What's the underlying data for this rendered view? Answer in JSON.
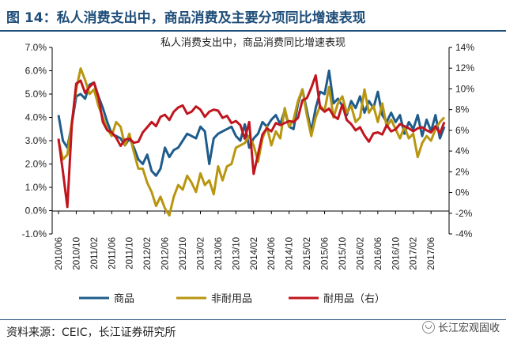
{
  "figure": {
    "title": "图 14：私人消费支出中，商品消费及主要分项同比增速表现",
    "source": "资料来源：CEIC，长江证券研究所",
    "watermark": "长江宏观固收"
  },
  "colors": {
    "goods": "#1f5c8b",
    "nondurable": "#b8960f",
    "durable": "#c0151e",
    "accent": "#1f4e79"
  },
  "chart_data": {
    "type": "line",
    "title": "私人消费支出中，商品消费同比增速表现",
    "x": [
      "2010/06",
      "2010/07",
      "2010/08",
      "2010/09",
      "2010/10",
      "2010/11",
      "2010/12",
      "2011/01",
      "2011/02",
      "2011/03",
      "2011/04",
      "2011/05",
      "2011/06",
      "2011/07",
      "2011/08",
      "2011/09",
      "2011/10",
      "2011/11",
      "2011/12",
      "2012/01",
      "2012/02",
      "2012/03",
      "2012/04",
      "2012/05",
      "2012/06",
      "2012/07",
      "2012/08",
      "2012/09",
      "2012/10",
      "2012/11",
      "2012/12",
      "2013/01",
      "2013/02",
      "2013/03",
      "2013/04",
      "2013/05",
      "2013/06",
      "2013/07",
      "2013/08",
      "2013/09",
      "2013/10",
      "2013/11",
      "2013/12",
      "2014/01",
      "2014/02",
      "2014/03",
      "2014/04",
      "2014/05",
      "2014/06",
      "2014/07",
      "2014/08",
      "2014/09",
      "2014/10",
      "2014/11",
      "2014/12",
      "2015/01",
      "2015/02",
      "2015/03",
      "2015/04",
      "2015/05",
      "2015/06",
      "2015/07",
      "2015/08",
      "2015/09",
      "2015/10",
      "2015/11",
      "2015/12",
      "2016/01",
      "2016/02",
      "2016/03",
      "2016/04",
      "2016/05",
      "2016/06",
      "2016/07",
      "2016/08",
      "2016/09",
      "2016/10",
      "2016/11",
      "2016/12",
      "2017/01",
      "2017/02",
      "2017/03",
      "2017/04",
      "2017/05",
      "2017/06",
      "2017/07",
      "2017/08",
      "2017/09"
    ],
    "xticks": [
      "2010/06",
      "2010/10",
      "2011/02",
      "2011/06",
      "2011/10",
      "2012/02",
      "2012/06",
      "2012/10",
      "2013/02",
      "2013/06",
      "2013/10",
      "2014/02",
      "2014/06",
      "2014/10",
      "2015/02",
      "2015/06",
      "2015/10",
      "2016/02",
      "2016/06",
      "2016/10",
      "2017/02",
      "2017/06"
    ],
    "y_left": {
      "min": -1.0,
      "max": 7.0,
      "step": 1.0,
      "format": "percent1"
    },
    "y_right": {
      "min": -4,
      "max": 14,
      "step": 2,
      "format": "percent0"
    },
    "series": [
      {
        "name": "商品",
        "axis": "left",
        "color": "#1f5c8b",
        "values": [
          4.1,
          3.0,
          2.7,
          3.7,
          4.9,
          5.0,
          4.8,
          5.4,
          5.5,
          4.9,
          4.4,
          3.8,
          3.3,
          3.2,
          3.1,
          2.8,
          3.1,
          2.7,
          2.2,
          2.0,
          2.4,
          1.7,
          1.5,
          1.8,
          2.7,
          2.3,
          2.6,
          2.7,
          3.0,
          3.3,
          3.2,
          3.1,
          3.6,
          3.4,
          2.0,
          3.1,
          3.3,
          3.4,
          3.5,
          3.6,
          3.2,
          3.0,
          3.7,
          2.7,
          3.1,
          3.3,
          3.8,
          3.6,
          3.9,
          4.1,
          3.7,
          4.3,
          3.6,
          3.5,
          4.6,
          5.2,
          4.3,
          3.4,
          4.4,
          5.1,
          5.0,
          6.0,
          4.6,
          4.8,
          4.5,
          4.1,
          4.7,
          4.4,
          4.9,
          4.2,
          4.7,
          4.4,
          5.1,
          4.1,
          3.8,
          4.2,
          3.8,
          4.1,
          3.3,
          3.8,
          3.5,
          4.1,
          3.2,
          3.9,
          3.4,
          4.1,
          3.1,
          3.6
        ]
      },
      {
        "name": "非耐用品",
        "axis": "left",
        "color": "#b8960f",
        "values": [
          3.0,
          2.2,
          2.4,
          3.8,
          5.2,
          6.1,
          5.6,
          5.0,
          5.2,
          4.5,
          4.0,
          3.5,
          3.2,
          3.8,
          3.6,
          2.8,
          3.3,
          2.5,
          1.8,
          1.8,
          1.2,
          0.8,
          0.2,
          0.6,
          0.1,
          -0.2,
          0.6,
          1.1,
          0.9,
          1.5,
          1.2,
          0.8,
          1.6,
          1.1,
          1.3,
          0.7,
          1.9,
          1.3,
          1.9,
          2.0,
          2.7,
          2.8,
          2.9,
          3.2,
          2.8,
          2.1,
          3.1,
          3.6,
          2.8,
          3.4,
          3.1,
          4.4,
          3.6,
          3.9,
          4.7,
          5.2,
          4.1,
          3.2,
          4.0,
          4.5,
          4.3,
          5.3,
          4.0,
          4.6,
          4.9,
          4.2,
          4.5,
          3.8,
          4.0,
          5.2,
          4.2,
          4.5,
          3.8,
          4.6,
          3.6,
          3.9,
          3.5,
          3.1,
          3.6,
          3.1,
          3.3,
          2.3,
          2.9,
          3.2,
          3.0,
          3.5,
          3.8,
          4.0
        ]
      },
      {
        "name": "耐用品（右）",
        "axis": "right",
        "color": "#c0151e",
        "values": [
          5.2,
          2.0,
          -1.4,
          6.5,
          10.5,
          10.8,
          9.6,
          10.2,
          10.6,
          9.2,
          6.8,
          6.0,
          5.8,
          5.3,
          4.5,
          5.1,
          5.2,
          4.8,
          4.9,
          5.8,
          6.3,
          6.8,
          6.4,
          7.3,
          7.5,
          7.0,
          7.8,
          8.2,
          8.4,
          7.6,
          7.8,
          8.3,
          8.0,
          7.3,
          7.8,
          8.0,
          7.9,
          7.2,
          7.4,
          6.7,
          6.9,
          6.5,
          5.2,
          6.8,
          1.8,
          3.7,
          5.6,
          6.2,
          5.9,
          6.7,
          6.5,
          6.7,
          6.9,
          6.8,
          7.2,
          8.9,
          9.1,
          10.1,
          11.3,
          8.2,
          7.8,
          8.1,
          7.4,
          7.1,
          8.5,
          7.0,
          6.6,
          6.0,
          6.3,
          5.5,
          4.9,
          5.7,
          5.8,
          5.6,
          6.5,
          5.9,
          6.1,
          6.6,
          6.4,
          6.2,
          5.9,
          6.2,
          6.3,
          6.0,
          5.8,
          6.4,
          5.7,
          6.8
        ]
      }
    ],
    "legend": {
      "position": "bottom"
    },
    "grid": false
  }
}
